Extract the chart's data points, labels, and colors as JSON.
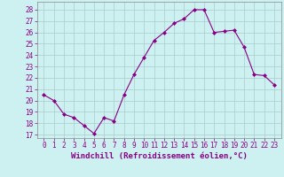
{
  "x": [
    0,
    1,
    2,
    3,
    4,
    5,
    6,
    7,
    8,
    9,
    10,
    11,
    12,
    13,
    14,
    15,
    16,
    17,
    18,
    19,
    20,
    21,
    22,
    23
  ],
  "y": [
    20.5,
    20.0,
    18.8,
    18.5,
    17.8,
    17.1,
    18.5,
    18.2,
    20.5,
    22.3,
    23.8,
    25.3,
    26.0,
    26.8,
    27.2,
    28.0,
    28.0,
    26.0,
    26.1,
    26.2,
    24.7,
    22.3,
    22.2,
    21.4
  ],
  "line_color": "#880088",
  "marker": "D",
  "marker_size": 2,
  "bg_color": "#cdf0f0",
  "grid_color": "#aacccc",
  "xlabel": "Windchill (Refroidissement éolien,°C)",
  "ylabel_ticks": [
    17,
    18,
    19,
    20,
    21,
    22,
    23,
    24,
    25,
    26,
    27,
    28
  ],
  "ylim": [
    16.7,
    28.7
  ],
  "xlim": [
    -0.7,
    23.7
  ],
  "xticks": [
    0,
    1,
    2,
    3,
    4,
    5,
    6,
    7,
    8,
    9,
    10,
    11,
    12,
    13,
    14,
    15,
    16,
    17,
    18,
    19,
    20,
    21,
    22,
    23
  ],
  "tick_fontsize": 5.5,
  "xlabel_fontsize": 6.5
}
